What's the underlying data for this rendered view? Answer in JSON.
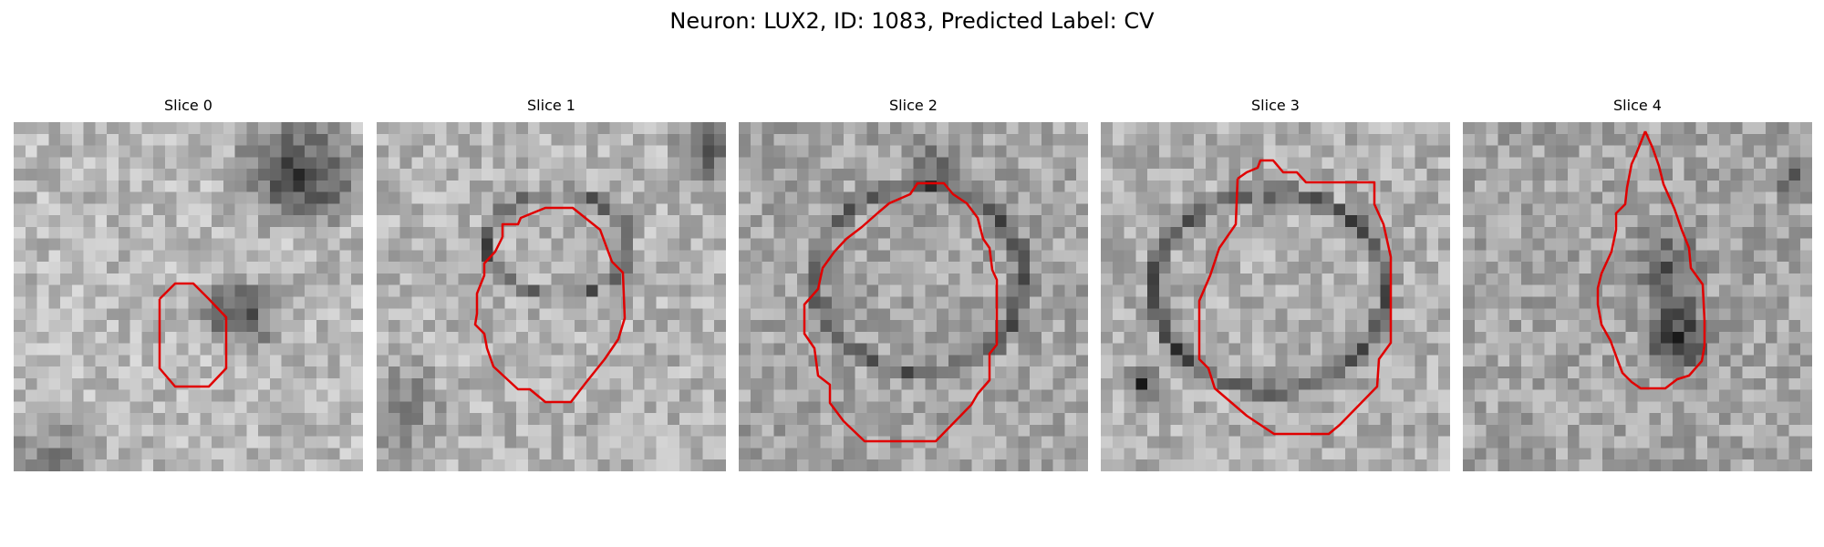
{
  "figure": {
    "title": "Neuron: LUX2, ID: 1083, Predicted Label: CV",
    "contour_color": "#e00000",
    "colormap": "grayscale",
    "panels": [
      {
        "label": "Slice 0"
      },
      {
        "label": "Slice 1"
      },
      {
        "label": "Slice 2"
      },
      {
        "label": "Slice 3"
      },
      {
        "label": "Slice 4"
      }
    ]
  }
}
